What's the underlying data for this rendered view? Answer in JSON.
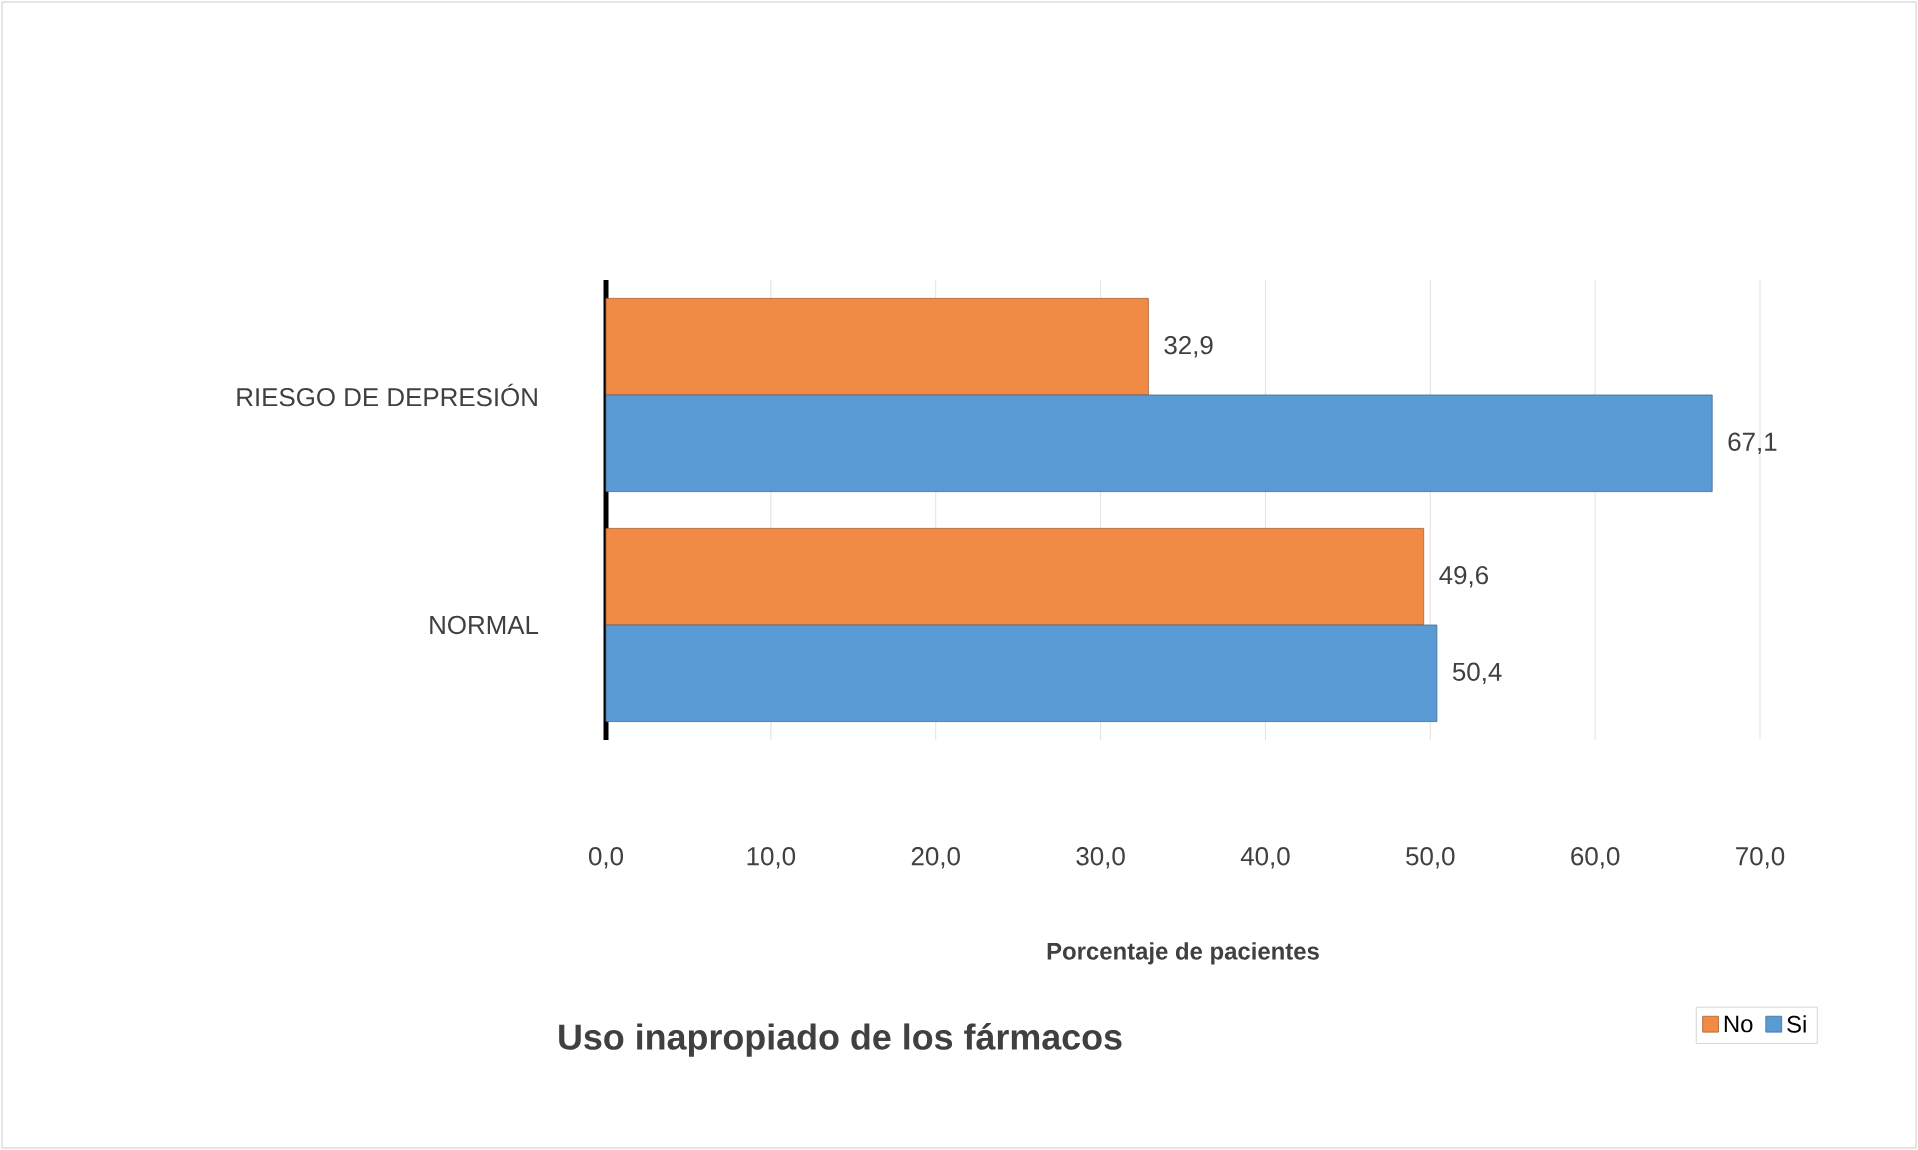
{
  "chart_data": {
    "type": "bar",
    "orientation": "horizontal",
    "title": "Uso inapropiado de los fármacos",
    "xlabel": "Porcentaje de pacientes",
    "categories": [
      "RIESGO DE DEPRESIÓN",
      "NORMAL"
    ],
    "series": [
      {
        "name": "No",
        "color": "#f08a45",
        "values": [
          32.9,
          49.6
        ],
        "value_labels": [
          "32,9",
          "49,6"
        ]
      },
      {
        "name": "Si",
        "color": "#5b9bd5",
        "values": [
          67.1,
          50.4
        ],
        "value_labels": [
          "67,1",
          "50,4"
        ]
      }
    ],
    "xlim": [
      0,
      70
    ],
    "xticks": [
      {
        "value": 0,
        "label": "0,0"
      },
      {
        "value": 10,
        "label": "10,0"
      },
      {
        "value": 20,
        "label": "20,0"
      },
      {
        "value": 30,
        "label": "30,0"
      },
      {
        "value": 40,
        "label": "40,0"
      },
      {
        "value": 50,
        "label": "50,0"
      },
      {
        "value": 60,
        "label": "60,0"
      },
      {
        "value": 70,
        "label": "70,0"
      }
    ],
    "grid": "x",
    "legend": "bottom right"
  }
}
